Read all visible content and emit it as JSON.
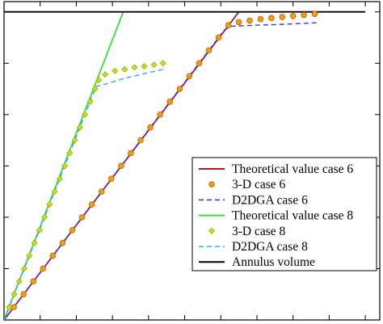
{
  "chart_data": {
    "type": "line",
    "title": "",
    "xlabel": "",
    "ylabel": "",
    "xlim": [
      0,
      10.4
    ],
    "ylim": [
      0,
      6.2
    ],
    "grid": false,
    "legend_placement": "bottom-right",
    "series": [
      {
        "name": "Theoretical value case 6",
        "style": "solid-line",
        "color": "#b0182a",
        "points": [
          [
            0,
            0
          ],
          [
            6.5,
            6.0
          ]
        ]
      },
      {
        "name": "3-D case 6",
        "style": "circle-markers",
        "color": "#f39c12",
        "points": [
          [
            0.27,
            0.25
          ],
          [
            0.54,
            0.5
          ],
          [
            0.81,
            0.75
          ],
          [
            1.08,
            1.0
          ],
          [
            1.35,
            1.25
          ],
          [
            1.62,
            1.5
          ],
          [
            1.89,
            1.75
          ],
          [
            2.16,
            2.0
          ],
          [
            2.43,
            2.25
          ],
          [
            2.7,
            2.5
          ],
          [
            2.97,
            2.75
          ],
          [
            3.24,
            3.0
          ],
          [
            3.51,
            3.25
          ],
          [
            3.78,
            3.5
          ],
          [
            4.05,
            3.75
          ],
          [
            4.32,
            4.0
          ],
          [
            4.59,
            4.25
          ],
          [
            4.86,
            4.5
          ],
          [
            5.13,
            4.75
          ],
          [
            5.4,
            5.0
          ],
          [
            5.67,
            5.25
          ],
          [
            5.94,
            5.5
          ],
          [
            6.21,
            5.74
          ],
          [
            6.5,
            5.8
          ],
          [
            6.8,
            5.83
          ],
          [
            7.1,
            5.86
          ],
          [
            7.4,
            5.88
          ],
          [
            7.7,
            5.9
          ],
          [
            8.0,
            5.92
          ],
          [
            8.3,
            5.94
          ],
          [
            8.6,
            5.96
          ]
        ]
      },
      {
        "name": "D2DGA case 6",
        "style": "dashed-line",
        "color": "#3b3bd6",
        "points": [
          [
            0,
            0
          ],
          [
            1.08,
            1.0
          ],
          [
            2.16,
            2.0
          ],
          [
            3.24,
            3.0
          ],
          [
            4.32,
            4.0
          ],
          [
            5.4,
            5.0
          ],
          [
            6.1,
            5.65
          ],
          [
            6.3,
            5.72
          ],
          [
            7.0,
            5.74
          ],
          [
            7.8,
            5.76
          ],
          [
            8.7,
            5.79
          ]
        ]
      },
      {
        "name": "Theoretical value case 8",
        "style": "solid-line",
        "color": "#3ddc3d",
        "points": [
          [
            0,
            0
          ],
          [
            3.3,
            6.0
          ]
        ]
      },
      {
        "name": "3-D case 8",
        "style": "diamond-markers",
        "color": "#c8dd1a",
        "points": [
          [
            0.14,
            0.25
          ],
          [
            0.28,
            0.5
          ],
          [
            0.42,
            0.75
          ],
          [
            0.56,
            1.0
          ],
          [
            0.7,
            1.25
          ],
          [
            0.84,
            1.5
          ],
          [
            0.98,
            1.75
          ],
          [
            1.12,
            2.0
          ],
          [
            1.26,
            2.25
          ],
          [
            1.4,
            2.5
          ],
          [
            1.54,
            2.75
          ],
          [
            1.68,
            3.0
          ],
          [
            1.82,
            3.25
          ],
          [
            1.96,
            3.5
          ],
          [
            2.1,
            3.75
          ],
          [
            2.24,
            4.0
          ],
          [
            2.38,
            4.25
          ],
          [
            2.52,
            4.5
          ],
          [
            2.62,
            4.67
          ],
          [
            2.8,
            4.78
          ],
          [
            3.07,
            4.85
          ],
          [
            3.34,
            4.88
          ],
          [
            3.61,
            4.92
          ],
          [
            3.88,
            4.94
          ],
          [
            4.15,
            4.97
          ],
          [
            4.4,
            5.0
          ]
        ]
      },
      {
        "name": "D2DGA case 8",
        "style": "dashed-line",
        "color": "#3aa8e0",
        "points": [
          [
            0,
            0
          ],
          [
            0.56,
            1.0
          ],
          [
            1.12,
            2.0
          ],
          [
            1.68,
            3.0
          ],
          [
            2.24,
            4.0
          ],
          [
            2.55,
            4.55
          ],
          [
            2.75,
            4.58
          ],
          [
            3.3,
            4.7
          ],
          [
            3.9,
            4.8
          ],
          [
            4.4,
            4.88
          ]
        ]
      },
      {
        "name": "Annulus volume",
        "style": "solid-line",
        "color": "#000000",
        "points": [
          [
            0,
            6.0
          ],
          [
            10.0,
            6.0
          ]
        ]
      }
    ]
  }
}
